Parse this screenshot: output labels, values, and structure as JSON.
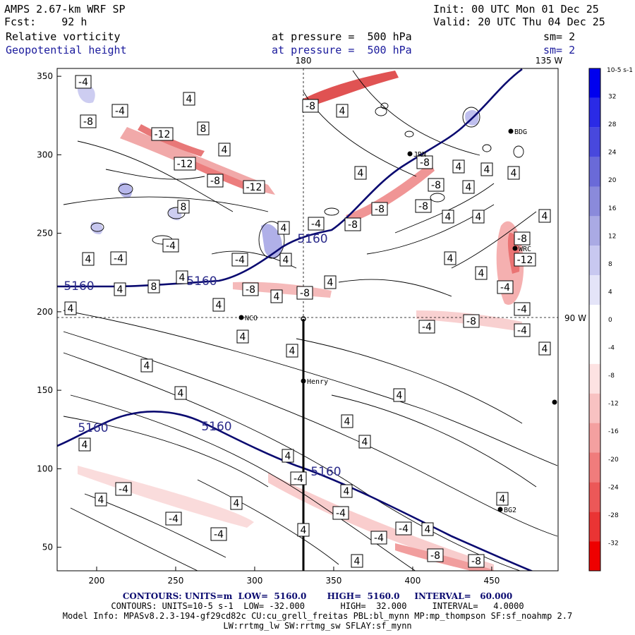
{
  "header": {
    "model": "AMPS 2.67-km WRF SP",
    "init": "Init: 00 UTC Mon 01 Dec 25",
    "fcst": "Fcst:    92 h",
    "valid": "Valid: 20 UTC Thu 04 Dec 25",
    "field1": "Relative vorticity",
    "field1_level": "at pressure =  500 hPa",
    "field1_sm": "sm= 2",
    "field2": "Geopotential height",
    "field2_level": "at pressure =  500 hPa",
    "field2_sm": "sm= 2"
  },
  "map": {
    "top_labels": [
      "180",
      "135 W"
    ],
    "right_label": "90 W",
    "x_ticks": [
      "200",
      "250",
      "300",
      "350",
      "400",
      "450"
    ],
    "y_ticks": [
      "350",
      "300",
      "250",
      "200",
      "150",
      "100",
      "50"
    ],
    "stations": [
      "NCO",
      "Henry",
      "BDG",
      "JRN",
      "WRC",
      "BG2"
    ],
    "height_label": "5160",
    "vort_labels": [
      "4",
      "8",
      "-4",
      "-8",
      "-12"
    ]
  },
  "colorbar": {
    "unit": "10-5 s-1",
    "labels": [
      "32",
      "28",
      "24",
      "20",
      "16",
      "12",
      "8",
      "4",
      "0",
      "-4",
      "-8",
      "-12",
      "-16",
      "-20",
      "-24",
      "-28",
      "-32"
    ],
    "colors": [
      "#0000ee",
      "#2a2ae6",
      "#4848dd",
      "#6a6ad8",
      "#8a8adb",
      "#aaaae4",
      "#c8c8f0",
      "#e4e4f8",
      "#ffffff",
      "#ffffff",
      "#fde2e2",
      "#f8c2c2",
      "#f4a0a0",
      "#f07c7c",
      "#ec5858",
      "#ea3434",
      "#ee0000"
    ]
  },
  "footer": {
    "line1": "CONTOURS: UNITS=m  LOW=  5160.0       HIGH=  5160.0     INTERVAL=   60.000",
    "line2": "CONTOURS: UNITS=10-5 s-1  LOW= -32.000       HIGH=  32.000     INTERVAL=   4.0000",
    "line3": "Model Info: MPASv8.2.3-194-gf29cd82c CU:cu_grell_freitas PBL:bl_mynn MP:mp_thompson SF:sf_noahmp 2.7",
    "line4": "LW:rrtmg_lw SW:rrtmg_sw SFLAY:sf_mynn"
  }
}
